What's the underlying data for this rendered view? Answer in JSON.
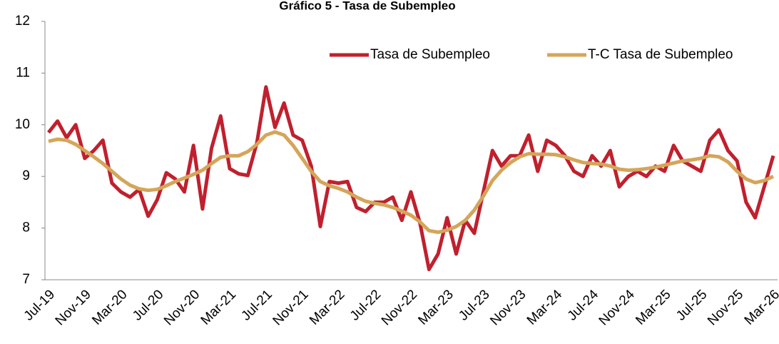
{
  "chart_data": {
    "type": "line",
    "title": "Gráfico 5 - Tasa de Subempleo",
    "categories": [
      "Jul-19",
      null,
      null,
      null,
      "Nov-19",
      null,
      null,
      null,
      "Mar-20",
      null,
      null,
      null,
      "Jul-20",
      null,
      null,
      null,
      "Nov-20",
      null,
      null,
      null,
      "Mar-21",
      null,
      null,
      null,
      "Jul-21",
      null,
      null,
      null,
      "Nov-21",
      null,
      null,
      null,
      "Mar-22",
      null,
      null,
      null,
      "Jul-22",
      null,
      null,
      null,
      "Nov-22",
      null,
      null,
      null,
      "Mar-23",
      null,
      null,
      null,
      "Jul-23",
      null,
      null,
      null,
      "Nov-23",
      null,
      null,
      null,
      "Mar-24",
      null,
      null,
      null,
      "Jul-24",
      null,
      null,
      null,
      "Nov-24",
      null,
      null,
      null,
      "Mar-25",
      null,
      null,
      null,
      "Jul-25",
      null,
      null,
      null,
      "Nov-25",
      null,
      null,
      null,
      "Mar-26"
    ],
    "series": [
      {
        "name": "Tasa de Subempleo",
        "color": "#c0202e",
        "values": [
          9.85,
          10.07,
          9.75,
          10.0,
          9.35,
          9.5,
          9.7,
          8.87,
          8.7,
          8.6,
          8.75,
          8.23,
          8.55,
          9.07,
          8.95,
          8.7,
          9.6,
          8.37,
          9.55,
          10.17,
          9.15,
          9.05,
          9.02,
          9.65,
          10.73,
          9.95,
          10.42,
          9.8,
          9.7,
          9.2,
          8.03,
          8.9,
          8.87,
          8.9,
          8.4,
          8.32,
          8.5,
          8.5,
          8.6,
          8.15,
          8.7,
          8.1,
          7.2,
          7.5,
          8.2,
          7.5,
          8.15,
          7.9,
          8.7,
          9.5,
          9.2,
          9.4,
          9.4,
          9.8,
          9.1,
          9.7,
          9.6,
          9.4,
          9.1,
          9.0,
          9.4,
          9.2,
          9.5,
          8.8,
          9.0,
          9.1,
          9.0,
          9.2,
          9.1,
          9.6,
          9.3,
          9.2,
          9.1,
          9.7,
          9.9,
          9.5,
          9.3,
          8.5,
          8.2,
          8.8,
          9.4
        ]
      },
      {
        "name": "T-C Tasa de Subempleo",
        "color": "#d4a55a",
        "values": [
          9.68,
          9.72,
          9.7,
          9.62,
          9.5,
          9.38,
          9.25,
          9.1,
          8.95,
          8.83,
          8.76,
          8.73,
          8.75,
          8.82,
          8.9,
          8.97,
          9.04,
          9.12,
          9.25,
          9.37,
          9.4,
          9.4,
          9.48,
          9.62,
          9.8,
          9.86,
          9.8,
          9.6,
          9.35,
          9.1,
          8.9,
          8.82,
          8.77,
          8.7,
          8.6,
          8.52,
          8.48,
          8.45,
          8.4,
          8.33,
          8.25,
          8.12,
          7.95,
          7.92,
          7.96,
          8.03,
          8.15,
          8.35,
          8.62,
          8.92,
          9.12,
          9.27,
          9.38,
          9.44,
          9.43,
          9.43,
          9.42,
          9.38,
          9.32,
          9.27,
          9.25,
          9.24,
          9.2,
          9.14,
          9.12,
          9.13,
          9.15,
          9.18,
          9.22,
          9.26,
          9.3,
          9.32,
          9.35,
          9.4,
          9.38,
          9.28,
          9.1,
          8.95,
          8.88,
          8.92,
          9.0
        ]
      }
    ],
    "ylim": [
      7,
      12
    ],
    "yticks": [
      7,
      8,
      9,
      10,
      11,
      12
    ],
    "grid": false,
    "legend": "top-right"
  }
}
